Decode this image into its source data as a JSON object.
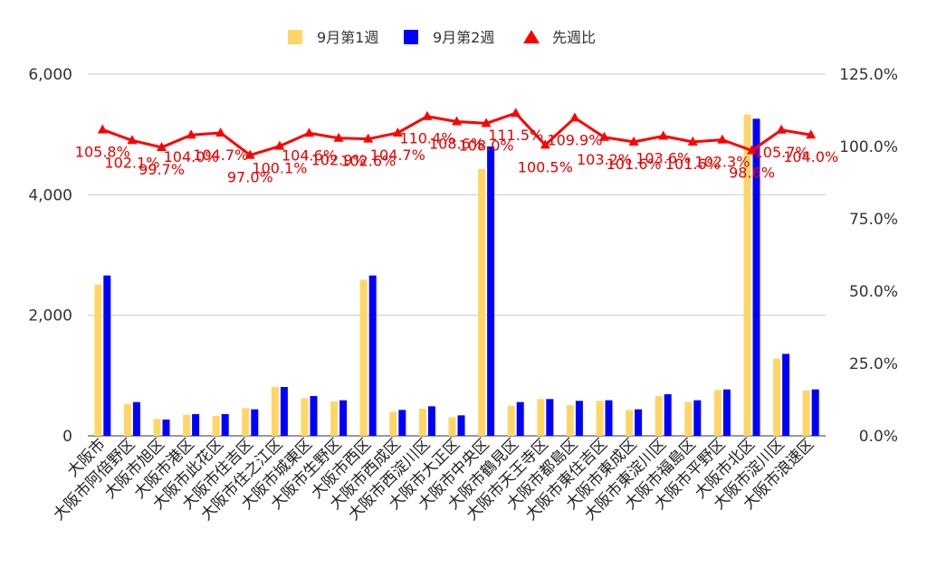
{
  "chart_data": {
    "type": "bar",
    "categories": [
      "大阪市",
      "大阪市阿倍野区",
      "大阪市旭区",
      "大阪市港区",
      "大阪市此花区",
      "大阪市住吉区",
      "大阪市住之江区",
      "大阪市城東区",
      "大阪市生野区",
      "大阪市西区",
      "大阪市西成区",
      "大阪市西淀川区",
      "大阪市大正区",
      "大阪市中央区",
      "大阪市鶴見区",
      "大阪市天王寺区",
      "大阪市都島区",
      "大阪市東住吉区",
      "大阪市東成区",
      "大阪市東淀川区",
      "大阪市福島区",
      "大阪市平野区",
      "大阪市北区",
      "大阪市淀川区",
      "大阪市浪速区"
    ],
    "series": [
      {
        "name": "9月第1週",
        "color": "#FFD666",
        "axis": "left",
        "values": [
          2510,
          530,
          280,
          350,
          330,
          460,
          810,
          620,
          570,
          2590,
          400,
          450,
          310,
          4430,
          500,
          610,
          510,
          580,
          430,
          660,
          560,
          760,
          5330,
          1280,
          750
        ]
      },
      {
        "name": "9月第2週",
        "color": "#0000FF",
        "axis": "left",
        "values": [
          2660,
          560,
          270,
          360,
          360,
          440,
          810,
          660,
          590,
          2660,
          430,
          490,
          340,
          4800,
          560,
          610,
          580,
          590,
          440,
          690,
          590,
          770,
          5260,
          1360,
          770
        ]
      },
      {
        "name": "先週比",
        "color": "#FF0000",
        "axis": "right",
        "render": "line-triangle",
        "values": [
          105.8,
          102.1,
          99.7,
          104.0,
          104.7,
          97.0,
          100.1,
          104.6,
          102.9,
          102.6,
          104.7,
          110.4,
          108.6,
          108.0,
          111.5,
          100.5,
          109.9,
          103.2,
          101.6,
          103.6,
          101.6,
          102.3,
          98.6,
          105.7,
          104.0
        ],
        "labels": [
          "105.8%",
          "102.1%",
          "99.7%",
          "104.0%",
          "104.7%",
          "97.0%",
          "100.1%",
          "104.6%",
          "102.9%",
          "102.6%",
          "104.7%",
          "110.4%",
          "108.6%",
          "108.0%",
          "111.5%",
          "100.5%",
          "109.9%",
          "103.2%",
          "101.6%",
          "103.6%",
          "101.6%",
          "102.3%",
          "98.6%",
          "105.7%",
          "104.0%"
        ]
      }
    ],
    "y_left": {
      "min": 0,
      "max": 6000,
      "ticks": [
        "0",
        "2,000",
        "4,000",
        "6,000"
      ],
      "tick_values": [
        0,
        2000,
        4000,
        6000
      ]
    },
    "y_right": {
      "min": 0,
      "max": 125,
      "ticks": [
        "0.0%",
        "25.0%",
        "50.0%",
        "75.0%",
        "100.0%",
        "125.0%"
      ],
      "tick_values": [
        0,
        25,
        50,
        75,
        100,
        125
      ]
    },
    "grid": true,
    "legend_position": "top",
    "title": "",
    "xlabel": "",
    "ylabel": ""
  }
}
